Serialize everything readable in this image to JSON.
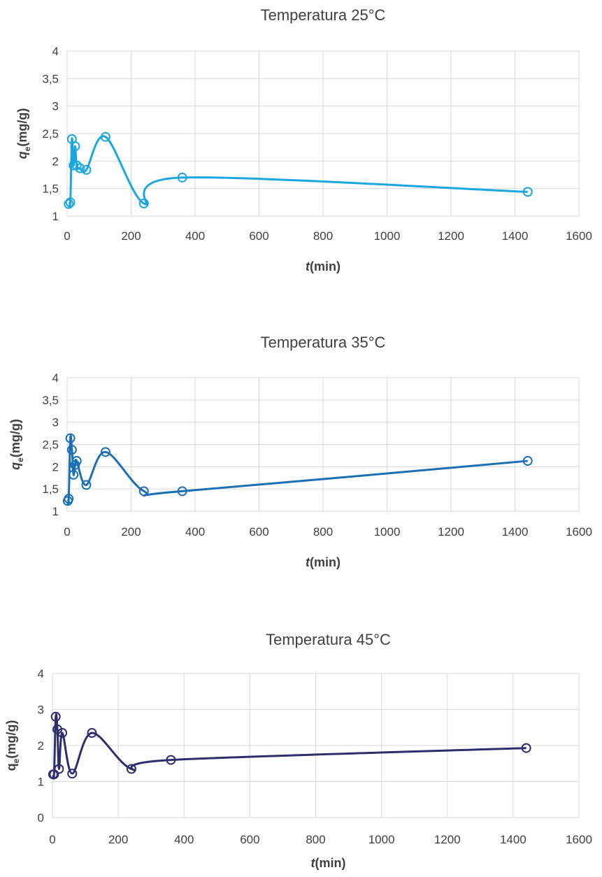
{
  "chart_data": [
    {
      "type": "scatter",
      "title": "Temperatura 25°C",
      "xlabel_italic": "t",
      "xlabel_rest": "(min)",
      "ylabel_main": "q",
      "ylabel_sub": "e",
      "ylabel_rest": "(mg/g)",
      "ylabel_italic": true,
      "xlim": [
        0,
        1600
      ],
      "ylim": [
        1,
        4
      ],
      "xticks": [
        "0",
        "200",
        "400",
        "600",
        "800",
        "1000",
        "1200",
        "1400",
        "1600"
      ],
      "yticks": [
        "1",
        "1,5",
        "2",
        "2,5",
        "3",
        "3,5",
        "4"
      ],
      "grid": true,
      "color": "#1aa7e0",
      "series": [
        {
          "x": [
            5,
            10,
            15,
            20,
            25,
            30,
            40,
            60,
            120,
            240,
            360,
            1440
          ],
          "y": [
            1.22,
            1.25,
            2.4,
            1.92,
            2.27,
            1.92,
            1.87,
            1.84,
            2.44,
            1.23,
            1.7,
            1.44
          ]
        }
      ]
    },
    {
      "type": "scatter",
      "title": "Temperatura 35°C",
      "xlabel_italic": "t",
      "xlabel_rest": "(min)",
      "ylabel_main": "q",
      "ylabel_sub": "e",
      "ylabel_rest": "(mg/g)",
      "ylabel_italic": true,
      "xlim": [
        0,
        1600
      ],
      "ylim": [
        1,
        4
      ],
      "xticks": [
        "0",
        "200",
        "400",
        "600",
        "800",
        "1000",
        "1200",
        "1400",
        "1600"
      ],
      "yticks": [
        "1",
        "1,5",
        "2",
        "2,5",
        "3",
        "3,5",
        "4"
      ],
      "grid": true,
      "color": "#1b6fb4",
      "series": [
        {
          "x": [
            2,
            5,
            10,
            15,
            20,
            25,
            30,
            60,
            120,
            240,
            360,
            1440
          ],
          "y": [
            1.23,
            1.28,
            2.64,
            2.38,
            1.82,
            2.04,
            2.13,
            1.59,
            2.33,
            1.45,
            1.45,
            2.13
          ]
        }
      ]
    },
    {
      "type": "scatter",
      "title": "Temperatura 45°C",
      "xlabel_italic": "t",
      "xlabel_rest": "(min)",
      "ylabel_main": "q",
      "ylabel_sub": "e",
      "ylabel_rest": "(mg/g)",
      "ylabel_italic": false,
      "xlim": [
        0,
        1600
      ],
      "ylim": [
        0,
        4
      ],
      "xticks": [
        "0",
        "200",
        "400",
        "600",
        "800",
        "1000",
        "1200",
        "1400",
        "1600"
      ],
      "yticks": [
        "0",
        "1",
        "2",
        "3",
        "4"
      ],
      "grid": true,
      "color": "#2e2e6e",
      "series": [
        {
          "x": [
            2,
            5,
            10,
            15,
            20,
            30,
            60,
            120,
            240,
            360,
            1440
          ],
          "y": [
            1.2,
            1.2,
            2.8,
            2.45,
            1.35,
            2.35,
            1.22,
            2.35,
            1.35,
            1.6,
            1.93
          ]
        }
      ]
    }
  ]
}
